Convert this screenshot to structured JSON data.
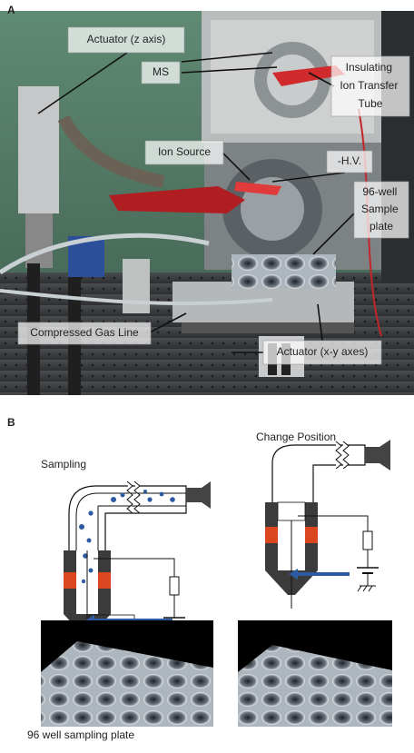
{
  "panel_a": {
    "label": "A",
    "callouts": [
      [
        "Actuator (z axis)"
      ],
      [
        "MS"
      ],
      [
        "Insulating",
        "Ion Transfer",
        "Tube"
      ],
      [
        "Ion Source"
      ],
      [
        "-H.V."
      ],
      [
        "96-well",
        "Sample",
        "plate"
      ],
      [
        "Compressed Gas Line"
      ],
      [
        "Actuator (x-y axes)"
      ]
    ]
  },
  "panel_b": {
    "label": "B",
    "left_title": "Sampling",
    "right_title": "Change Position",
    "caption": "96 well sampling plate"
  }
}
